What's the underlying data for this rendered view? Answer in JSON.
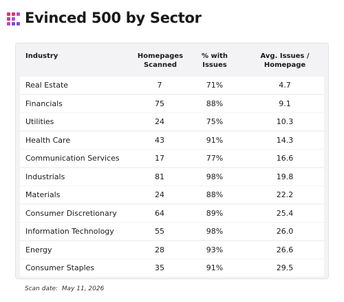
{
  "header": {
    "title": "Evinced 500 by Sector"
  },
  "table": {
    "columns": [
      "Industry",
      "Homepages Scanned",
      "% with Issues",
      "Avg. Issues / Homepage"
    ],
    "rows": [
      [
        "Real Estate",
        "7",
        "71%",
        "4.7"
      ],
      [
        "Financials",
        "75",
        "88%",
        "9.1"
      ],
      [
        "Utilities",
        "24",
        "75%",
        "10.3"
      ],
      [
        "Health Care",
        "43",
        "91%",
        "14.3"
      ],
      [
        "Communication Services",
        "17",
        "77%",
        "16.6"
      ],
      [
        "Industrials",
        "81",
        "98%",
        "19.8"
      ],
      [
        "Materials",
        "24",
        "88%",
        "22.2"
      ],
      [
        "Consumer Discretionary",
        "64",
        "89%",
        "25.4"
      ],
      [
        "Information Technology",
        "55",
        "98%",
        "26.0"
      ],
      [
        "Energy",
        "28",
        "93%",
        "26.6"
      ],
      [
        "Consumer Staples",
        "35",
        "91%",
        "29.5"
      ]
    ]
  },
  "footer": {
    "note": "Scan date:  May 11, 2026"
  }
}
